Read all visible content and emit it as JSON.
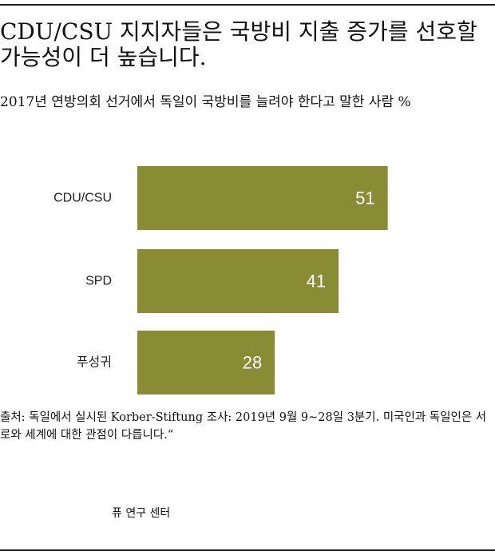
{
  "title": "CDU/CSU 지지자들은 국방비 지출 증가를 선호할 가능성이 더 높습니다.",
  "subtitle": "2017년 연방의회 선거에서 독일이 국방비를 늘려야 한다고 말한 사람 %",
  "chart_data": {
    "type": "bar",
    "orientation": "horizontal",
    "categories": [
      "CDU/CSU",
      "SPD",
      "푸성귀"
    ],
    "values": [
      51,
      41,
      28
    ],
    "value_labels": [
      "51",
      "41",
      "28"
    ],
    "bar_color": "#8a8b35",
    "value_label_color": "#ffffff",
    "title": "",
    "xlabel": "",
    "ylabel": "",
    "axis_range": [
      0,
      70
    ],
    "grid": false,
    "legend": "none"
  },
  "source_text": "출처: 독일에서 실시된 Korber-Stiftung 조사: 2019년 9월 9~28일 3분기. 미국인과 독일인은 서로와 세계에 대한 관점이 다릅니다.“",
  "credit": "퓨 연구 센터"
}
